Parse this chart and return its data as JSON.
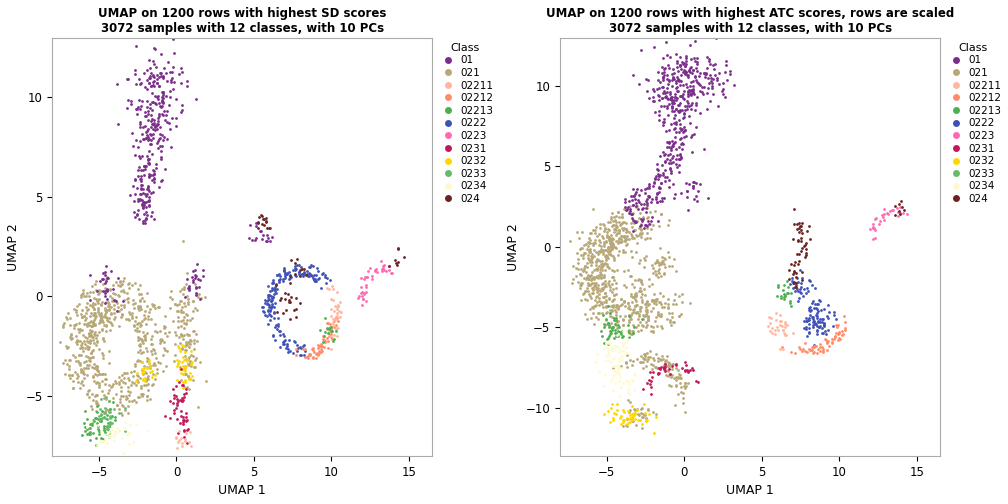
{
  "title1": "UMAP on 1200 rows with highest SD scores\n3072 samples with 12 classes, with 10 PCs",
  "title2": "UMAP on 1200 rows with highest ATC scores, rows are scaled\n3072 samples with 12 classes, with 10 PCs",
  "xlabel": "UMAP 1",
  "ylabel": "UMAP 2",
  "classes": [
    "01",
    "021",
    "02211",
    "02212",
    "02213",
    "0222",
    "0223",
    "0231",
    "0232",
    "0233",
    "0234",
    "024"
  ],
  "colors": {
    "01": "#7B2D8B",
    "021": "#B8A878",
    "02211": "#FFB6A0",
    "02212": "#FF8C69",
    "02213": "#4CAF50",
    "0222": "#3F51B5",
    "0223": "#FF69B4",
    "0231": "#C2185B",
    "0232": "#FFD700",
    "0233": "#66BB6A",
    "0234": "#FFFACD",
    "024": "#6B2222"
  },
  "xlim1": [
    -8,
    16.5
  ],
  "ylim1": [
    -8,
    13
  ],
  "xlim2": [
    -8,
    16.5
  ],
  "ylim2": [
    -13,
    13
  ],
  "xticks1": [
    -5,
    0,
    5,
    10,
    15
  ],
  "yticks1": [
    -5,
    0,
    5,
    10
  ],
  "xticks2": [
    -5,
    0,
    5,
    10,
    15
  ],
  "yticks2": [
    -10,
    -5,
    0,
    5,
    10
  ],
  "point_size": 4,
  "alpha": 1.0,
  "bg_color": "#FFFFFF",
  "spine_color": "#AAAAAA"
}
